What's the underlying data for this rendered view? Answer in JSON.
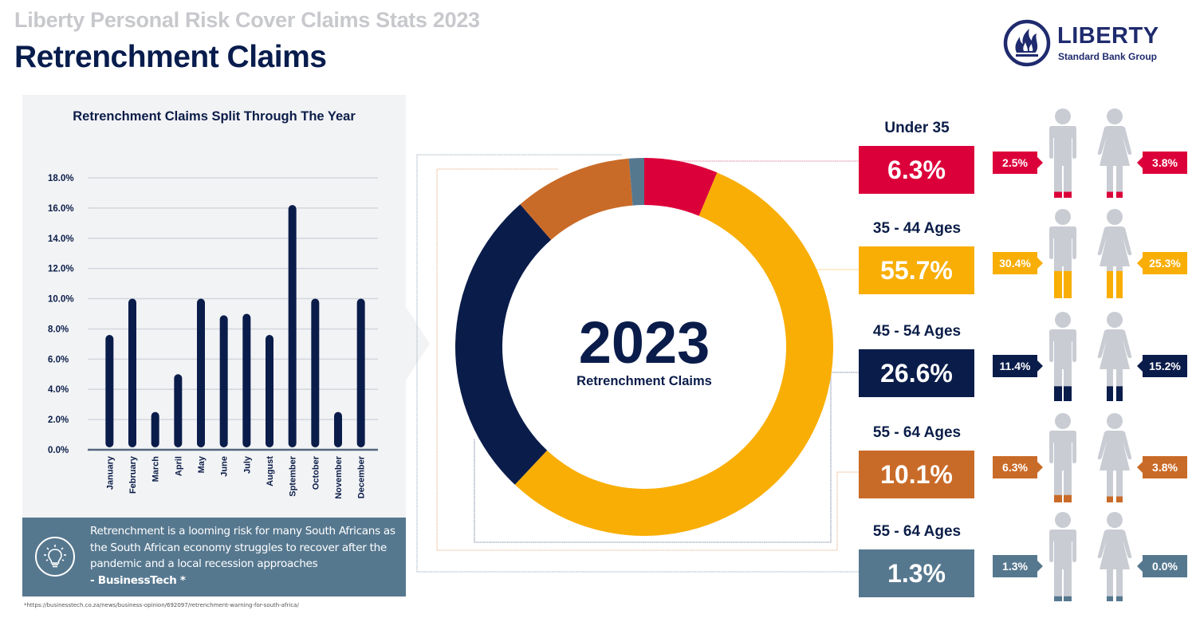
{
  "header": {
    "supertitle": "Liberty Personal Risk Cover Claims Stats 2023",
    "title": "Retrenchment Claims"
  },
  "logo": {
    "name": "LIBERTY",
    "subtitle": "Standard Bank Group",
    "icon": "flame-icon",
    "color": "#1f2b6e"
  },
  "quote": {
    "icon": "lightbulb-icon",
    "text": "Retrenchment is a looming risk for many South Africans as the South African economy struggles to recover after the pandemic and a local recession approaches",
    "source": "- BusinessTech *"
  },
  "footnote": "*https://businesstech.co.za/news/business-opinion/692097/retrenchment-warning-for-south-africa/",
  "colors": {
    "navy": "#0a1c4a",
    "red": "#dc003a",
    "yellow": "#f9ae05",
    "orange": "#c96b28",
    "slate": "#56788f",
    "figure_gray": "#c9ccd3"
  },
  "chart_data": [
    {
      "type": "bar",
      "title": "Retrenchment Claims Split Through The Year",
      "xlabel": "",
      "ylabel": "",
      "ylim": [
        0,
        18
      ],
      "yticks": [
        "0.0%",
        "2.0%",
        "4.0%",
        "6.0%",
        "8.0%",
        "10.0%",
        "12.0%",
        "14.0%",
        "16.0%",
        "18.0%"
      ],
      "grid": true,
      "categories": [
        "January",
        "February",
        "March",
        "April",
        "May",
        "June",
        "July",
        "August",
        "Sptember",
        "October",
        "November",
        "December"
      ],
      "values": [
        7.6,
        10.0,
        2.5,
        5.0,
        10.0,
        8.9,
        9.0,
        7.6,
        16.2,
        10.0,
        2.5,
        10.0
      ],
      "unit": "%"
    },
    {
      "type": "pie",
      "variant": "donut",
      "center_title": "2023",
      "center_subtitle": "Retrenchment Claims",
      "slices": [
        {
          "label": "Under 35",
          "value": 6.3,
          "display": "6.3%",
          "color": "#dc003a",
          "male": "2.5%",
          "female": "3.8%",
          "male_fill": 0.12,
          "female_fill": 0.12
        },
        {
          "label": "35 - 44 Ages",
          "value": 55.7,
          "display": "55.7%",
          "color": "#f9ae05",
          "male": "30.4%",
          "female": "25.3%",
          "male_fill": 0.55,
          "female_fill": 0.55
        },
        {
          "label": "45 - 54 Ages",
          "value": 26.6,
          "display": "26.6%",
          "color": "#0a1c4a",
          "male": "11.4%",
          "female": "15.2%",
          "male_fill": 0.3,
          "female_fill": 0.3
        },
        {
          "label": "55 - 64 Ages",
          "value": 10.1,
          "display": "10.1%",
          "color": "#c96b28",
          "male": "6.3%",
          "female": "3.8%",
          "male_fill": 0.15,
          "female_fill": 0.12
        },
        {
          "label": "55 - 64 Ages",
          "value": 1.3,
          "display": "1.3%",
          "color": "#56788f",
          "male": "1.3%",
          "female": "0.0%",
          "male_fill": 0.1,
          "female_fill": 0.0
        }
      ]
    }
  ]
}
